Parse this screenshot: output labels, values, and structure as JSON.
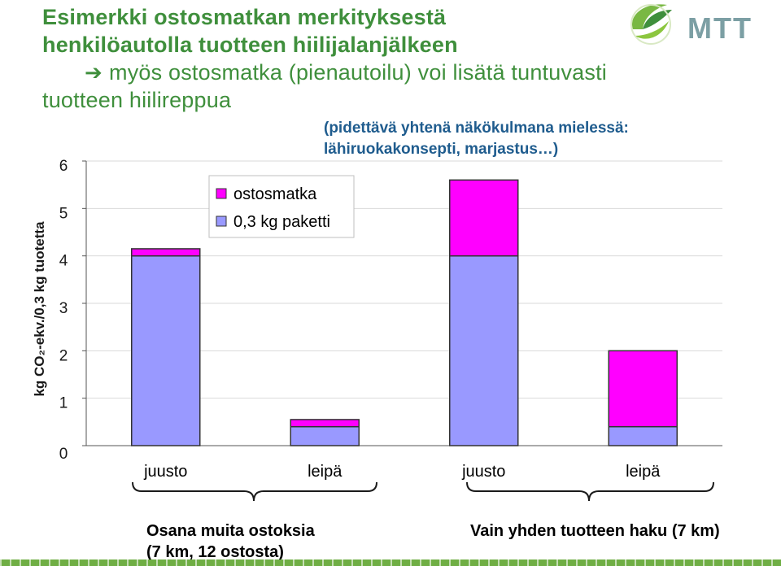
{
  "title": {
    "line1": "Esimerkki ostosmatkan merkityksestä",
    "line2": "henkilöautolla tuotteen hiilijalanjälkeen",
    "line3": "myös ostosmatka (pienautoilu) voi lisätä tuntuvasti",
    "line4": "tuotteen hiilireppua"
  },
  "note": {
    "line1": "(pidettävä yhtenä näkökulmana mielessä:",
    "line2": "lähiruokakonsepti, marjastus…)"
  },
  "logo": {
    "text": "MTT",
    "icon": "leaf-swirl-icon"
  },
  "captions": {
    "left_line1": "Osana muita ostoksia",
    "left_line2": "(7 km, 12 ostosta)",
    "right": "Vain yhden tuotteen haku (7 km)"
  },
  "chart_data": {
    "type": "bar",
    "stacked": true,
    "categories": [
      "juusto",
      "leipä",
      "juusto",
      "leipä"
    ],
    "series": [
      {
        "name": "0,3 kg paketti",
        "values": [
          4.0,
          0.4,
          4.0,
          0.4
        ],
        "color": "#9999ff"
      },
      {
        "name": "ostosmatka",
        "values": [
          0.15,
          0.15,
          1.6,
          1.6
        ],
        "color": "#ff00ff"
      }
    ],
    "ylabel": "kg CO₂-ekv./0,3 kg tuotetta",
    "ylim": [
      0,
      6
    ],
    "yticks": [
      "0",
      "1",
      "2",
      "3",
      "4",
      "5",
      "6"
    ],
    "grid": true,
    "legend_position": "top-center"
  },
  "colors": {
    "title": "#3f8f3c",
    "note": "#1f5c8e",
    "bar_base": "#9999ff",
    "bar_trip": "#ff00ff"
  }
}
